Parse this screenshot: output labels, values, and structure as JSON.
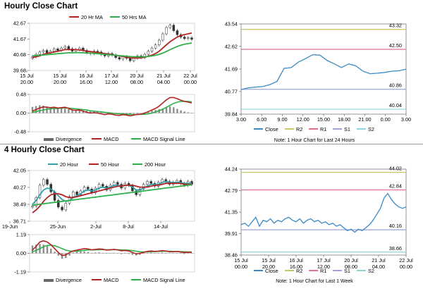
{
  "sections": [
    {
      "title": "Hourly Close Chart"
    },
    {
      "title": "4 Hourly Close Chart"
    }
  ],
  "chart_data": [
    {
      "id": "hourly_price",
      "type": "candlestick",
      "legend": [
        "20 Hr MA",
        "50 Hrs MA"
      ],
      "colors": {
        "ma_fast": "#b22424",
        "ma_slow": "#2fb04a"
      },
      "yticks": [
        42.67,
        41.67,
        40.68,
        39.68
      ],
      "ylim": [
        39.68,
        42.67
      ],
      "xticks": [
        [
          "15 Jul",
          "20.00"
        ],
        [
          "15 Jul",
          "20.00"
        ],
        [
          "16 Jul",
          "16.00"
        ],
        [
          "17 Jul",
          "12.00"
        ],
        [
          "20 Jul",
          "08.00"
        ],
        [
          "21 Jul",
          "04.00"
        ],
        [
          "22 Jul",
          "00.00"
        ]
      ],
      "close": [
        40.55,
        40.7,
        40.85,
        40.95,
        40.8,
        40.9,
        41.05,
        40.95,
        41.1,
        41.2,
        41.05,
        40.9,
        41.0,
        41.1,
        40.95,
        40.8,
        40.75,
        40.9,
        40.85,
        40.7,
        40.6,
        40.75,
        40.65,
        40.5,
        40.4,
        40.55,
        40.45,
        40.3,
        40.45,
        40.6,
        40.5,
        40.7,
        40.9,
        41.1,
        41.3,
        41.6,
        42.0,
        42.4,
        42.55,
        42.2,
        41.95,
        41.8,
        41.7,
        41.75,
        41.65
      ],
      "ma_fast": [
        40.5,
        40.55,
        40.6,
        40.7,
        40.75,
        40.8,
        40.85,
        40.9,
        40.95,
        41.0,
        41.0,
        41.0,
        41.0,
        40.98,
        40.95,
        40.9,
        40.88,
        40.85,
        40.82,
        40.78,
        40.75,
        40.72,
        40.68,
        40.64,
        40.6,
        40.56,
        40.52,
        40.48,
        40.47,
        40.47,
        40.48,
        40.52,
        40.58,
        40.65,
        40.75,
        40.9,
        41.1,
        41.3,
        41.5,
        41.65,
        41.8,
        41.9,
        41.95,
        42.0,
        42.05
      ],
      "ma_slow": [
        40.6,
        40.62,
        40.64,
        40.66,
        40.68,
        40.7,
        40.72,
        40.74,
        40.76,
        40.78,
        40.8,
        40.8,
        40.81,
        40.81,
        40.8,
        40.79,
        40.78,
        40.76,
        40.74,
        40.72,
        40.7,
        40.68,
        40.66,
        40.64,
        40.62,
        40.6,
        40.58,
        40.56,
        40.55,
        40.54,
        40.54,
        40.55,
        40.57,
        40.6,
        40.64,
        40.7,
        40.78,
        40.88,
        41.0,
        41.1,
        41.2,
        41.28,
        41.34,
        41.38,
        41.42
      ]
    },
    {
      "id": "hourly_macd",
      "type": "macd",
      "legend": [
        "Divergence",
        "MACD",
        "MACD Signal Line"
      ],
      "colors": {
        "macd": "#b22424",
        "signal": "#2fb04a",
        "divergence": "#8c8c8c"
      },
      "yticks": [
        0.48,
        0.0,
        -0.48
      ],
      "ylim": [
        -0.48,
        0.48
      ],
      "macd": [
        0.05,
        0.09,
        0.13,
        0.16,
        0.15,
        0.14,
        0.15,
        0.13,
        0.14,
        0.15,
        0.12,
        0.08,
        0.07,
        0.08,
        0.05,
        0.02,
        0.0,
        0.01,
        0.0,
        -0.02,
        -0.04,
        -0.02,
        -0.03,
        -0.05,
        -0.06,
        -0.04,
        -0.05,
        -0.07,
        -0.05,
        -0.03,
        -0.03,
        0.0,
        0.04,
        0.08,
        0.12,
        0.18,
        0.26,
        0.34,
        0.4,
        0.4,
        0.37,
        0.33,
        0.3,
        0.28,
        0.26
      ],
      "signal": [
        0.02,
        0.04,
        0.06,
        0.08,
        0.1,
        0.11,
        0.12,
        0.12,
        0.13,
        0.13,
        0.13,
        0.12,
        0.11,
        0.1,
        0.09,
        0.08,
        0.06,
        0.05,
        0.04,
        0.03,
        0.02,
        0.01,
        0.0,
        -0.01,
        -0.02,
        -0.02,
        -0.03,
        -0.03,
        -0.04,
        -0.04,
        -0.03,
        -0.03,
        -0.02,
        0.0,
        0.03,
        0.06,
        0.1,
        0.15,
        0.2,
        0.25,
        0.28,
        0.3,
        0.3,
        0.3,
        0.29
      ],
      "divergence": [
        0.16,
        0.18,
        0.2,
        0.19,
        0.17,
        0.15,
        0.14,
        0.13,
        0.12,
        0.11,
        0.1,
        0.09,
        0.08,
        0.08,
        0.07,
        0.06,
        0.05,
        0.04,
        0.03,
        0.02,
        0.01,
        0.0,
        -0.01,
        -0.02,
        -0.02,
        -0.02,
        -0.02,
        -0.03,
        -0.02,
        -0.01,
        0.0,
        0.02,
        0.04,
        0.06,
        0.08,
        0.1,
        0.12,
        0.15,
        0.17,
        0.15,
        0.11,
        0.07,
        0.04,
        0.02,
        0.0
      ]
    },
    {
      "id": "hourly_line",
      "type": "line",
      "note": "Note: 1 Hour Chart for Last 24 Hours",
      "legend": [
        "Close",
        "R2",
        "R1",
        "S1",
        "S2"
      ],
      "colors": {
        "close": "#3a8ac4",
        "R2": "#c8c86a",
        "R1": "#d9748a",
        "S1": "#9ea4d8",
        "S2": "#8fd2d8"
      },
      "ylim": [
        39.84,
        43.54
      ],
      "yticks": [
        43.54,
        42.62,
        41.69,
        40.77,
        39.84
      ],
      "xticks": [
        "3.00",
        "6.00",
        "9.00",
        "12.00",
        "15.00",
        "18.00",
        "21.00",
        "0.00",
        "3.00"
      ],
      "levels": {
        "R2": 43.32,
        "R1": 42.5,
        "S1": 40.86,
        "S2": 40.04
      },
      "level_labels": [
        "43.32",
        "42.50",
        "40.86",
        "40.04"
      ],
      "close": [
        40.85,
        40.92,
        40.95,
        40.97,
        41.05,
        41.18,
        41.72,
        41.75,
        41.98,
        42.12,
        42.28,
        42.26,
        42.04,
        41.9,
        41.75,
        41.9,
        41.82,
        41.6,
        41.5,
        41.52,
        41.55,
        41.6,
        41.62,
        41.68
      ]
    },
    {
      "id": "h4_price",
      "type": "candlestick",
      "legend": [
        "20 Hour",
        "50 Hour",
        "200 Hour"
      ],
      "colors": {
        "ma20": "#2f9fa8",
        "ma50": "#b22424",
        "ma200": "#2fb04a"
      },
      "yticks": [
        42.05,
        40.27,
        38.49,
        36.71
      ],
      "ylim": [
        36.71,
        42.05
      ],
      "xticks": [
        "19-Jun",
        "25-Jun",
        "2-Jul",
        "8-Jul",
        "14-Jul"
      ],
      "close": [
        38.3,
        39.2,
        40.5,
        41.1,
        40.6,
        39.8,
        38.9,
        38.2,
        37.9,
        38.6,
        39.3,
        39.8,
        39.5,
        39.9,
        40.3,
        40.1,
        39.7,
        40.2,
        40.6,
        40.4,
        40.0,
        40.5,
        40.8,
        40.6,
        40.2,
        40.7,
        40.5,
        39.9,
        39.5,
        40.1,
        40.6,
        40.9,
        40.7,
        40.4,
        40.8,
        41.1,
        40.9,
        40.6,
        40.8,
        41.0,
        40.7,
        40.5,
        40.9,
        40.6
      ],
      "ma20": [
        38.5,
        38.9,
        39.5,
        40.0,
        40.2,
        40.1,
        39.8,
        39.4,
        39.0,
        38.8,
        38.9,
        39.2,
        39.4,
        39.6,
        39.9,
        40.0,
        39.9,
        40.0,
        40.2,
        40.3,
        40.2,
        40.3,
        40.5,
        40.5,
        40.4,
        40.5,
        40.5,
        40.3,
        40.0,
        40.0,
        40.2,
        40.4,
        40.6,
        40.6,
        40.6,
        40.8,
        40.9,
        40.8,
        40.8,
        40.8,
        40.8,
        40.7,
        40.7,
        40.7
      ],
      "ma50": [
        37.6,
        37.9,
        38.3,
        38.8,
        39.2,
        39.5,
        39.6,
        39.6,
        39.5,
        39.3,
        39.2,
        39.2,
        39.3,
        39.4,
        39.5,
        39.6,
        39.7,
        39.8,
        39.9,
        40.0,
        40.1,
        40.2,
        40.3,
        40.4,
        40.4,
        40.5,
        40.5,
        40.5,
        40.4,
        40.3,
        40.3,
        40.3,
        40.4,
        40.5,
        40.5,
        40.6,
        40.7,
        40.7,
        40.7,
        40.7,
        40.7,
        40.6,
        40.6,
        40.6
      ],
      "ma200": [
        38.4,
        38.45,
        38.5,
        38.55,
        38.6,
        38.65,
        38.7,
        38.75,
        38.8,
        38.85,
        38.9,
        38.95,
        39.0,
        39.05,
        39.1,
        39.15,
        39.2,
        39.25,
        39.3,
        39.35,
        39.4,
        39.45,
        39.5,
        39.55,
        39.6,
        39.65,
        39.7,
        39.75,
        39.8,
        39.85,
        39.9,
        39.95,
        40.0,
        40.05,
        40.1,
        40.15,
        40.2,
        40.25,
        40.3,
        40.35,
        40.4,
        40.45,
        40.5,
        40.55
      ]
    },
    {
      "id": "h4_macd",
      "type": "macd",
      "legend": [
        "Divergence",
        "MACD",
        "MACD Signal Line"
      ],
      "colors": {
        "macd": "#b22424",
        "signal": "#2fb04a",
        "divergence": "#8c8c8c"
      },
      "yticks": [
        1.19,
        0.0,
        -1.19
      ],
      "ylim": [
        -1.19,
        1.19
      ],
      "macd": [
        0.2,
        0.45,
        0.72,
        0.8,
        0.72,
        0.55,
        0.3,
        0.05,
        -0.15,
        -0.1,
        0.05,
        0.15,
        0.2,
        0.25,
        0.3,
        0.28,
        0.22,
        0.25,
        0.28,
        0.26,
        0.2,
        0.22,
        0.25,
        0.22,
        0.16,
        0.18,
        0.15,
        0.05,
        -0.03,
        0.0,
        0.06,
        0.12,
        0.15,
        0.12,
        0.14,
        0.17,
        0.15,
        0.1,
        0.1,
        0.12,
        0.08,
        0.05,
        0.07,
        0.06
      ],
      "signal": [
        0.1,
        0.18,
        0.3,
        0.42,
        0.5,
        0.52,
        0.48,
        0.4,
        0.3,
        0.2,
        0.15,
        0.13,
        0.14,
        0.16,
        0.19,
        0.21,
        0.22,
        0.22,
        0.23,
        0.24,
        0.23,
        0.23,
        0.23,
        0.23,
        0.22,
        0.21,
        0.2,
        0.17,
        0.13,
        0.1,
        0.09,
        0.09,
        0.1,
        0.11,
        0.12,
        0.13,
        0.13,
        0.13,
        0.12,
        0.12,
        0.11,
        0.1,
        0.09,
        0.08
      ],
      "divergence": [
        0.5,
        0.55,
        0.6,
        0.55,
        0.45,
        0.3,
        0.1,
        -0.15,
        -0.35,
        -0.3,
        -0.15,
        0.05,
        0.1,
        0.12,
        0.12,
        0.08,
        0.02,
        0.05,
        0.06,
        0.03,
        -0.02,
        0.0,
        0.03,
        0.0,
        -0.05,
        -0.02,
        -0.04,
        -0.1,
        -0.14,
        -0.1,
        -0.03,
        0.03,
        0.05,
        0.02,
        0.03,
        0.05,
        0.03,
        -0.02,
        -0.01,
        0.01,
        -0.02,
        -0.04,
        -0.02,
        -0.02
      ]
    },
    {
      "id": "h4_line",
      "type": "line",
      "note": "Note: 1 Hour Chart for Last 1 Week",
      "legend": [
        "Close",
        "R2",
        "R1",
        "S1",
        "S2"
      ],
      "colors": {
        "close": "#3a8ac4",
        "R2": "#c8c86a",
        "R1": "#d9748a",
        "S1": "#9ea4d8",
        "S2": "#8fd2d8"
      },
      "ylim": [
        38.46,
        44.24
      ],
      "yticks": [
        44.24,
        42.79,
        41.35,
        39.91,
        38.46
      ],
      "xticks": [
        [
          "15 Jul",
          "00.00"
        ],
        [
          "15 Jul",
          "20.00"
        ],
        [
          "16 Jul",
          "16.00"
        ],
        [
          "17 Jul",
          "12.00"
        ],
        [
          "20 Jul",
          "08.00"
        ],
        [
          "21 Jul",
          "04.00"
        ],
        [
          "22 Jul",
          "00.00"
        ]
      ],
      "levels": {
        "R2": 44.02,
        "R1": 42.84,
        "S1": 40.16,
        "S2": 38.66
      },
      "level_labels": [
        "44.02",
        "42.84",
        "40.16",
        "38.66"
      ],
      "close": [
        40.5,
        40.6,
        40.4,
        40.7,
        41.0,
        40.4,
        40.8,
        40.7,
        40.9,
        40.6,
        40.8,
        40.7,
        40.9,
        41.0,
        40.8,
        40.7,
        40.9,
        40.6,
        40.8,
        40.9,
        40.7,
        40.8,
        40.6,
        40.7,
        40.5,
        40.6,
        40.4,
        40.5,
        40.3,
        40.1,
        40.2,
        40.0,
        40.2,
        40.1,
        40.3,
        40.5,
        40.8,
        41.2,
        41.6,
        42.3,
        42.6,
        42.2,
        41.9,
        41.7,
        41.6,
        41.7
      ]
    }
  ]
}
